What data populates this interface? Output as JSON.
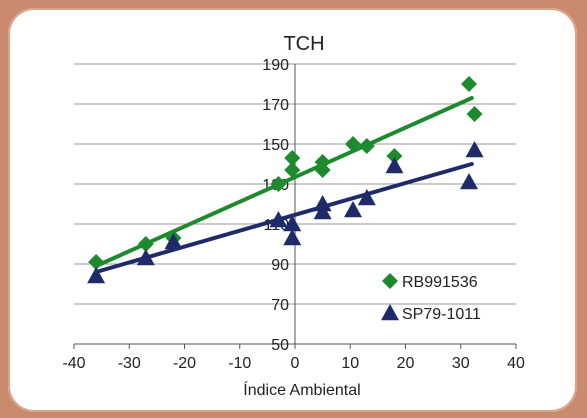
{
  "chart_data": {
    "type": "scatter",
    "title": "TCH",
    "xlabel": "Índice Ambiental",
    "ylabel": "",
    "xlim": [
      -40,
      40
    ],
    "ylim": [
      50,
      190
    ],
    "xticks": [
      -40,
      -30,
      -20,
      -10,
      0,
      10,
      20,
      30,
      40
    ],
    "yticks": [
      50,
      70,
      90,
      110,
      130,
      150,
      170,
      190
    ],
    "legend_position": "bottom-right",
    "series": [
      {
        "name": "RB991536",
        "marker": "diamond",
        "color": "#1e8a2e",
        "points": [
          {
            "x": -36,
            "y": 91
          },
          {
            "x": -27,
            "y": 100
          },
          {
            "x": -22,
            "y": 103
          },
          {
            "x": -3,
            "y": 130
          },
          {
            "x": -0.5,
            "y": 137
          },
          {
            "x": -0.5,
            "y": 143
          },
          {
            "x": 5,
            "y": 137
          },
          {
            "x": 5,
            "y": 141
          },
          {
            "x": 10.5,
            "y": 150
          },
          {
            "x": 13,
            "y": 149
          },
          {
            "x": 18,
            "y": 144
          },
          {
            "x": 31.5,
            "y": 180
          },
          {
            "x": 32.5,
            "y": 165
          }
        ],
        "trendline": {
          "x": [
            -36,
            32
          ],
          "y": [
            89,
            173
          ]
        }
      },
      {
        "name": "SP79-1011",
        "marker": "triangle",
        "color": "#1f2a6b",
        "points": [
          {
            "x": -36,
            "y": 84
          },
          {
            "x": -27,
            "y": 93
          },
          {
            "x": -22,
            "y": 101
          },
          {
            "x": -3,
            "y": 112
          },
          {
            "x": -0.5,
            "y": 110
          },
          {
            "x": -0.5,
            "y": 103
          },
          {
            "x": 5,
            "y": 116
          },
          {
            "x": 5,
            "y": 120
          },
          {
            "x": 10.5,
            "y": 117
          },
          {
            "x": 13,
            "y": 123
          },
          {
            "x": 18,
            "y": 139
          },
          {
            "x": 31.5,
            "y": 131
          },
          {
            "x": 32.5,
            "y": 147
          }
        ],
        "trendline": {
          "x": [
            -36,
            32
          ],
          "y": [
            86,
            140
          ]
        }
      }
    ]
  }
}
